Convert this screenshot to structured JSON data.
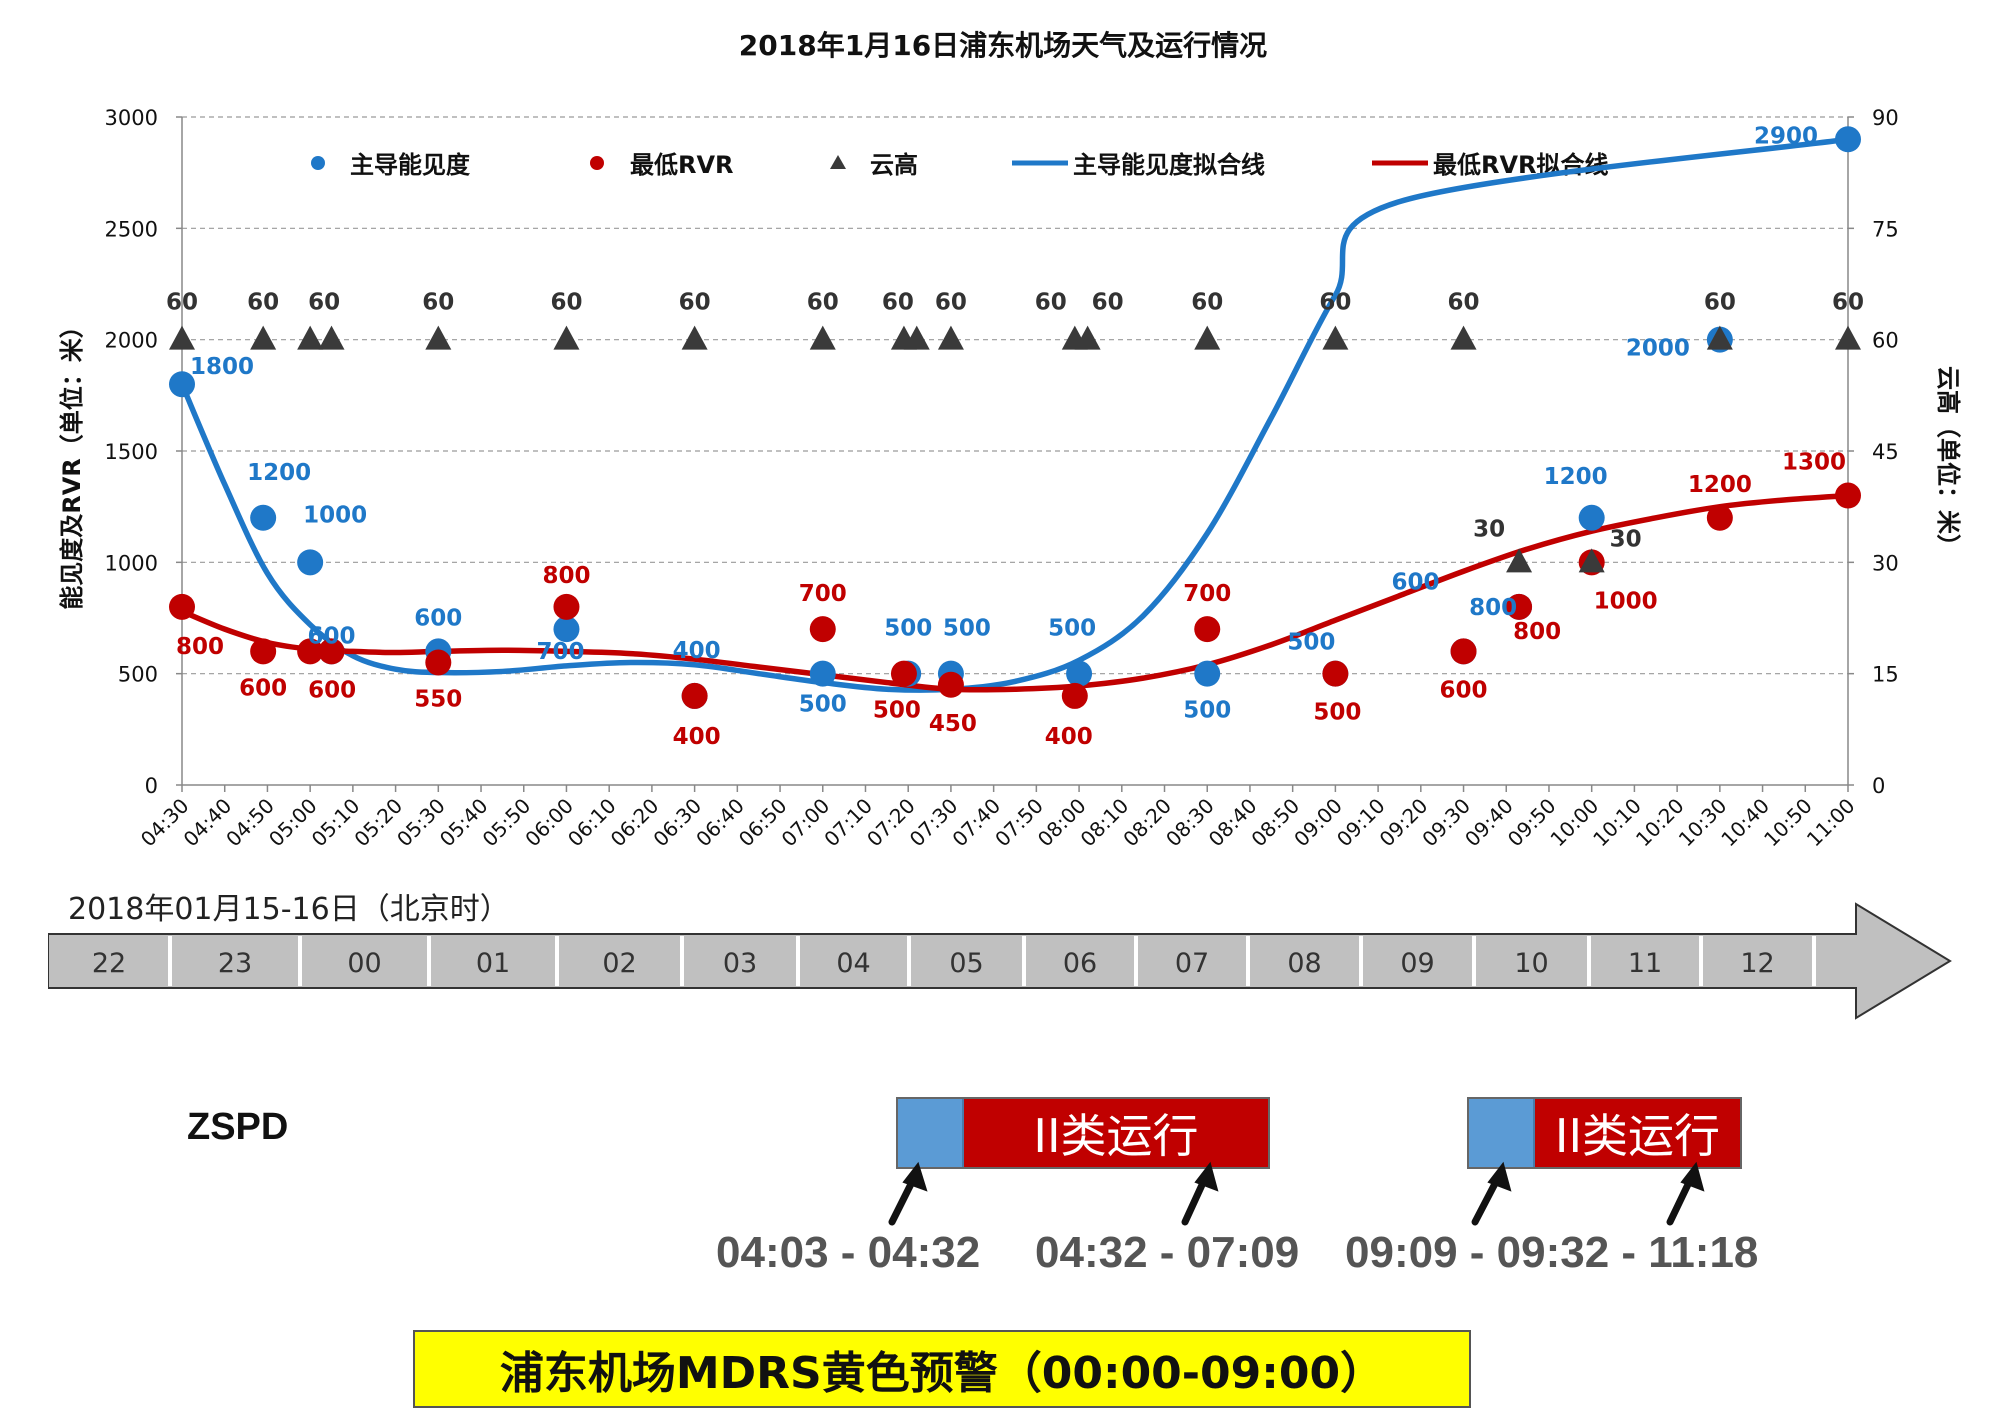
{
  "chart_data": {
    "type": "scatter",
    "title": "2018年1月16日浦东机场天气及运行情况",
    "ylabel": "能见度及RVR（单位：米）",
    "y2label": "云高（单位：米）",
    "ylim": [
      0,
      3000
    ],
    "y2lim": [
      0,
      90
    ],
    "yticks": [
      "0",
      "500",
      "1000",
      "1500",
      "2000",
      "2500",
      "3000"
    ],
    "y2ticks": [
      "0",
      "15",
      "30",
      "45",
      "60",
      "75",
      "90"
    ],
    "xlim": [
      "04:30",
      "11:00"
    ],
    "xticks": [
      "04:30",
      "04:40",
      "04:50",
      "05:00",
      "05:10",
      "05:20",
      "05:30",
      "05:40",
      "05:50",
      "06:00",
      "06:10",
      "06:20",
      "06:30",
      "06:40",
      "06:50",
      "07:00",
      "07:10",
      "07:20",
      "07:30",
      "07:40",
      "07:50",
      "08:00",
      "08:10",
      "08:20",
      "08:30",
      "08:40",
      "08:50",
      "09:00",
      "09:10",
      "09:20",
      "09:30",
      "09:40",
      "09:50",
      "10:00",
      "10:10",
      "10:20",
      "10:30",
      "10:40",
      "10:50",
      "11:00"
    ],
    "grid": true,
    "legend_position": "top",
    "legend": [
      "主导能见度",
      "最低RVR",
      "云高",
      "主导能见度拟合线",
      "最低RVR拟合线"
    ],
    "colors": {
      "visibility": "#1f78c8",
      "rvr": "#c00000",
      "ceiling": "#3a3a3a"
    },
    "series": [
      {
        "name": "主导能见度",
        "color": "#1f78c8",
        "points": [
          {
            "x": "04:30",
            "y": 1800,
            "label": "1800"
          },
          {
            "x": "04:49",
            "y": 1200,
            "label": "1200"
          },
          {
            "x": "05:00",
            "y": 1000,
            "label": "1000"
          },
          {
            "x": "05:05",
            "y": 600,
            "label": "600"
          },
          {
            "x": "05:30",
            "y": 600,
            "label": "600"
          },
          {
            "x": "06:00",
            "y": 700,
            "label": "700"
          },
          {
            "x": "06:30",
            "y": 400,
            "label": "400"
          },
          {
            "x": "07:00",
            "y": 500,
            "label": "500"
          },
          {
            "x": "07:20",
            "y": 500,
            "label": "500"
          },
          {
            "x": "07:30",
            "y": 500,
            "label": "500"
          },
          {
            "x": "08:00",
            "y": 500,
            "label": "500"
          },
          {
            "x": "08:30",
            "y": 500,
            "label": "500"
          },
          {
            "x": "09:00",
            "y": 500,
            "label": "500"
          },
          {
            "x": "09:30",
            "y": 600,
            "label": "600"
          },
          {
            "x": "09:43",
            "y": 800,
            "label": "800"
          },
          {
            "x": "10:00",
            "y": 1200,
            "label": "1200"
          },
          {
            "x": "10:30",
            "y": 2000,
            "label": "2000"
          },
          {
            "x": "11:00",
            "y": 2900,
            "label": "2900"
          }
        ]
      },
      {
        "name": "最低RVR",
        "color": "#c00000",
        "points": [
          {
            "x": "04:30",
            "y": 800,
            "label": "800"
          },
          {
            "x": "04:49",
            "y": 600,
            "label": "600"
          },
          {
            "x": "05:00",
            "y": 600,
            "label": "600"
          },
          {
            "x": "05:05",
            "y": 600,
            "label": "600"
          },
          {
            "x": "05:30",
            "y": 550,
            "label": "550"
          },
          {
            "x": "06:00",
            "y": 800,
            "label": "800"
          },
          {
            "x": "06:30",
            "y": 400,
            "label": "400"
          },
          {
            "x": "07:00",
            "y": 700,
            "label": "700"
          },
          {
            "x": "07:19",
            "y": 500,
            "label": "500"
          },
          {
            "x": "07:30",
            "y": 450,
            "label": "450"
          },
          {
            "x": "07:59",
            "y": 400,
            "label": "400"
          },
          {
            "x": "08:30",
            "y": 700,
            "label": "700"
          },
          {
            "x": "09:00",
            "y": 500,
            "label": "500"
          },
          {
            "x": "09:30",
            "y": 600,
            "label": "600"
          },
          {
            "x": "09:43",
            "y": 800,
            "label": "800"
          },
          {
            "x": "10:00",
            "y": 1000,
            "label": "1000"
          },
          {
            "x": "10:30",
            "y": 1200,
            "label": "1200"
          },
          {
            "x": "11:00",
            "y": 1300,
            "label": "1300"
          }
        ]
      },
      {
        "name": "云高",
        "color": "#3a3a3a",
        "axis": "right",
        "points": [
          {
            "x": "04:30",
            "y": 60,
            "label": "60"
          },
          {
            "x": "04:49",
            "y": 60,
            "label": "60"
          },
          {
            "x": "05:00",
            "y": 60,
            "label": "60"
          },
          {
            "x": "05:05",
            "y": 60,
            "label": ""
          },
          {
            "x": "05:30",
            "y": 60,
            "label": "60"
          },
          {
            "x": "06:00",
            "y": 60,
            "label": "60"
          },
          {
            "x": "06:30",
            "y": 60,
            "label": "60"
          },
          {
            "x": "07:00",
            "y": 60,
            "label": "60"
          },
          {
            "x": "07:19",
            "y": 60,
            "label": "60"
          },
          {
            "x": "07:22",
            "y": 60,
            "label": ""
          },
          {
            "x": "07:30",
            "y": 60,
            "label": "60"
          },
          {
            "x": "07:59",
            "y": 60,
            "label": "60"
          },
          {
            "x": "08:02",
            "y": 60,
            "label": "60"
          },
          {
            "x": "08:30",
            "y": 60,
            "label": "60"
          },
          {
            "x": "09:00",
            "y": 60,
            "label": "60"
          },
          {
            "x": "09:30",
            "y": 60,
            "label": "60"
          },
          {
            "x": "09:43",
            "y": 30,
            "label": "30"
          },
          {
            "x": "10:00",
            "y": 30,
            "label": "30"
          },
          {
            "x": "10:30",
            "y": 60,
            "label": "60"
          },
          {
            "x": "11:00",
            "y": 60,
            "label": "60"
          }
        ]
      },
      {
        "name": "主导能见度拟合线",
        "type": "line",
        "color": "#1f78c8",
        "curve": [
          [
            0,
            1800
          ],
          [
            10,
            1350
          ],
          [
            20,
            950
          ],
          [
            30,
            720
          ],
          [
            40,
            580
          ],
          [
            50,
            520
          ],
          [
            60,
            505
          ],
          [
            75,
            510
          ],
          [
            90,
            535
          ],
          [
            105,
            550
          ],
          [
            120,
            540
          ],
          [
            135,
            500
          ],
          [
            150,
            460
          ],
          [
            165,
            430
          ],
          [
            180,
            430
          ],
          [
            195,
            465
          ],
          [
            210,
            560
          ],
          [
            225,
            760
          ],
          [
            240,
            1130
          ],
          [
            255,
            1650
          ],
          [
            270,
            2200
          ],
          [
            285,
            2620
          ],
          [
            390,
            2900
          ]
        ]
      },
      {
        "name": "最低RVR拟合线",
        "type": "line",
        "color": "#c00000",
        "curve": [
          [
            0,
            780
          ],
          [
            10,
            700
          ],
          [
            20,
            640
          ],
          [
            30,
            610
          ],
          [
            40,
            600
          ],
          [
            50,
            595
          ],
          [
            60,
            600
          ],
          [
            75,
            605
          ],
          [
            90,
            600
          ],
          [
            105,
            590
          ],
          [
            120,
            565
          ],
          [
            135,
            530
          ],
          [
            150,
            495
          ],
          [
            165,
            460
          ],
          [
            180,
            430
          ],
          [
            195,
            430
          ],
          [
            210,
            445
          ],
          [
            225,
            480
          ],
          [
            240,
            540
          ],
          [
            255,
            630
          ],
          [
            270,
            740
          ],
          [
            285,
            850
          ],
          [
            300,
            960
          ],
          [
            315,
            1060
          ],
          [
            330,
            1140
          ],
          [
            345,
            1200
          ],
          [
            360,
            1250
          ],
          [
            375,
            1280
          ],
          [
            390,
            1300
          ]
        ]
      }
    ]
  },
  "timeline": {
    "label": "2018年01月15-16日（北京时）",
    "hours": [
      "22",
      "23",
      "00",
      "01",
      "02",
      "03",
      "04",
      "05",
      "06",
      "07",
      "08",
      "09",
      "10",
      "11",
      "12"
    ]
  },
  "operations": {
    "station": "ZSPD",
    "band1_label": "II类运行",
    "band2_label": "II类运行",
    "time1": "04:03 - 04:32",
    "time2": "04:32 - 07:09",
    "time3": "09:09 - 09:32 - 11:18"
  },
  "warning": {
    "text": "浦东机场MDRS黄色预警（00:00-09:00）"
  }
}
